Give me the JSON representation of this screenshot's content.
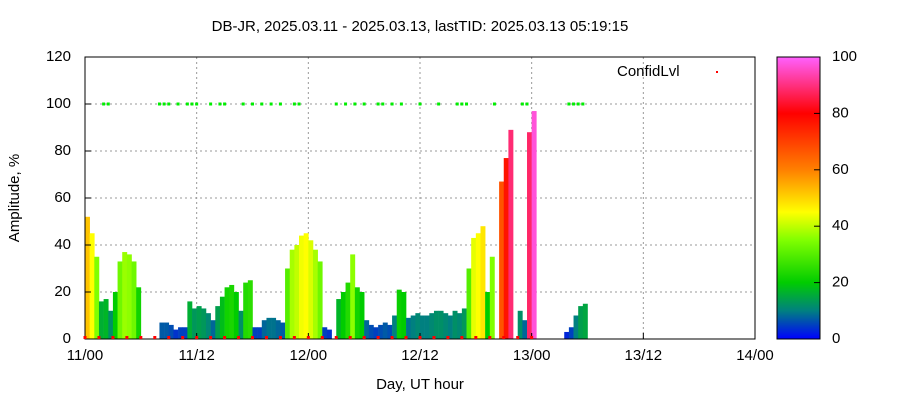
{
  "chart_data": {
    "type": "impulse",
    "title": "DB-JR, 2025.03.11 - 2025.03.13, lastTID: 2025.03.13 05:19:15",
    "x_label": "Day, UT hour",
    "y_label": "Amplitude, %",
    "xlim": [
      0,
      72
    ],
    "xticks": [
      {
        "value": 0,
        "label": "11/00"
      },
      {
        "value": 12,
        "label": "11/12"
      },
      {
        "value": 24,
        "label": "12/00"
      },
      {
        "value": 36,
        "label": "12/12"
      },
      {
        "value": 48,
        "label": "13/00"
      },
      {
        "value": 60,
        "label": "13/12"
      },
      {
        "value": 72,
        "label": "14/00"
      }
    ],
    "ylim": [
      0,
      120
    ],
    "yticks": [
      0,
      20,
      40,
      60,
      80,
      100,
      120
    ],
    "grid": true,
    "zlim": [
      0,
      100
    ],
    "zticks": [
      0,
      20,
      40,
      60,
      80,
      100
    ],
    "colormap": [
      [
        0,
        "#0000ff"
      ],
      [
        10,
        "#008080"
      ],
      [
        20,
        "#00cc00"
      ],
      [
        35,
        "#80ff00"
      ],
      [
        45,
        "#ffff00"
      ],
      [
        60,
        "#ff8000"
      ],
      [
        80,
        "#ff0000"
      ],
      [
        100,
        "#ff60ff"
      ]
    ],
    "amplitude": {
      "x": [
        0,
        0.5,
        1,
        1.5,
        2,
        2.5,
        3,
        3.5,
        4,
        4.5,
        5,
        5.5,
        8,
        8.5,
        9,
        9.5,
        10,
        10.5,
        11,
        11.5,
        12,
        12.5,
        13,
        13.5,
        14,
        14.5,
        15,
        15.5,
        16,
        16.5,
        17,
        17.5,
        18,
        18.5,
        19,
        19.5,
        20,
        20.5,
        21,
        21.5,
        22,
        22.5,
        23,
        23.5,
        24,
        24.5,
        25,
        25.5,
        26,
        27,
        27.5,
        28,
        28.5,
        29,
        29.5,
        30,
        30.5,
        31,
        31.5,
        32,
        32.5,
        33,
        33.5,
        34,
        34.5,
        35,
        35.5,
        36,
        36.5,
        37,
        37.5,
        38,
        38.5,
        39,
        39.5,
        40,
        40.5,
        41,
        41.5,
        42,
        42.5,
        43,
        43.5,
        44.5,
        45,
        45.5,
        46.5,
        47,
        47.5,
        48,
        51.5,
        52,
        52.5,
        53,
        53.5
      ],
      "values": [
        52,
        45,
        35,
        16,
        17,
        12,
        20,
        33,
        37,
        36,
        33,
        22,
        7,
        7,
        6,
        4,
        5,
        5,
        16,
        13,
        14,
        13,
        11,
        8,
        14,
        18,
        22,
        23,
        20,
        12,
        24,
        25,
        5,
        5,
        8,
        9,
        9,
        8,
        7,
        30,
        38,
        40,
        44,
        45,
        42,
        38,
        33,
        5,
        4,
        17,
        20,
        24,
        36,
        22,
        20,
        8,
        6,
        5,
        6,
        7,
        6,
        10,
        21,
        20,
        9,
        10,
        11,
        10,
        10,
        11,
        12,
        12,
        11,
        10,
        12,
        11,
        13,
        30,
        43,
        45,
        48,
        20,
        35,
        67,
        77,
        89,
        12,
        8,
        88,
        97,
        3,
        5,
        10,
        14,
        15
      ]
    },
    "series": [
      {
        "name": "ConfidLvl",
        "color": "#ff0000",
        "high_color": "#00ee00",
        "x": [
          2,
          2.5,
          8,
          8.5,
          9,
          10,
          11,
          11.5,
          12,
          13.5,
          14.5,
          15,
          17,
          18,
          19,
          20,
          21,
          22.5,
          23,
          27,
          28,
          29,
          30,
          31.5,
          32,
          33,
          34,
          36,
          38,
          40,
          40.5,
          41,
          44,
          47,
          47.5,
          52,
          52.5,
          53,
          53.5,
          0,
          1.5,
          3,
          4.5,
          6,
          7.5,
          9,
          10.5,
          12,
          13.5,
          15,
          16.5,
          18,
          19.5,
          21,
          22.5,
          24,
          25.5,
          27,
          28.5,
          30,
          31.5,
          33,
          34.5,
          36,
          37.5,
          39,
          40.5,
          42,
          43.5,
          45,
          46.5,
          48
        ],
        "values": [
          100,
          100,
          100,
          100,
          100,
          100,
          100,
          100,
          100,
          100,
          100,
          100,
          100,
          100,
          100,
          100,
          100,
          100,
          100,
          100,
          100,
          100,
          100,
          100,
          100,
          100,
          100,
          100,
          100,
          100,
          100,
          100,
          100,
          100,
          100,
          100,
          100,
          100,
          100,
          0,
          0,
          0,
          0,
          0,
          0,
          0,
          0,
          0,
          0,
          0,
          0,
          0,
          0,
          0,
          0,
          0,
          0,
          0,
          0,
          0,
          0,
          0,
          0,
          0,
          0,
          0,
          0,
          0,
          0,
          0,
          0,
          0
        ]
      }
    ]
  }
}
